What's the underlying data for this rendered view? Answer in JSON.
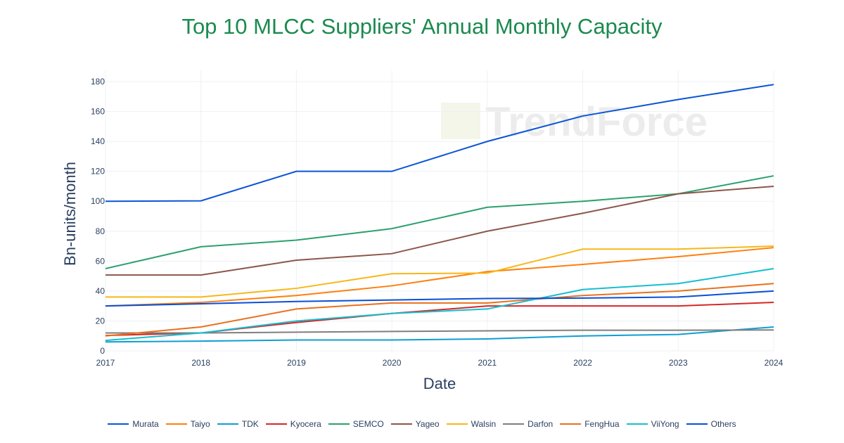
{
  "chart_data": {
    "type": "line",
    "title": "Top 10 MLCC Suppliers' Annual Monthly Capacity",
    "xlabel": "Date",
    "ylabel": "Bn-units/month",
    "x": [
      2017,
      2018,
      2019,
      2020,
      2021,
      2022,
      2023,
      2024
    ],
    "xlim": [
      2017,
      2024
    ],
    "ylim": [
      0,
      180
    ],
    "yticks": [
      0,
      20,
      40,
      60,
      80,
      100,
      120,
      140,
      160,
      180
    ],
    "grid": true,
    "legend_placement": "bottom",
    "watermark": "TrendForce",
    "series": [
      {
        "name": "Murata",
        "color": "#0b55d6",
        "values": [
          100,
          100.3,
          120,
          120,
          140,
          157,
          168,
          178
        ]
      },
      {
        "name": "Taiyo",
        "color": "#ff7f0e",
        "values": [
          30,
          32.4,
          37,
          43.5,
          53,
          57.8,
          63,
          69
        ]
      },
      {
        "name": "TDK",
        "color": "#0e9ed3",
        "values": [
          6,
          6.5,
          7.3,
          7.3,
          8,
          10,
          11,
          16
        ]
      },
      {
        "name": "Kyocera",
        "color": "#d62728",
        "values": [
          10.3,
          12,
          19,
          25,
          30,
          30,
          30,
          32.4
        ]
      },
      {
        "name": "SEMCO",
        "color": "#2ca06f",
        "values": [
          55,
          69.6,
          74,
          81.7,
          96,
          100,
          105,
          117
        ]
      },
      {
        "name": "Yageo",
        "color": "#8c564b",
        "values": [
          50.7,
          50.7,
          60.6,
          65,
          80,
          92,
          105,
          110
        ]
      },
      {
        "name": "Walsin",
        "color": "#f7b718",
        "values": [
          36,
          36,
          41.8,
          51.6,
          52,
          68,
          68,
          70
        ]
      },
      {
        "name": "Darfon",
        "color": "#7f7f7f",
        "values": [
          12,
          12,
          12.5,
          13,
          13.4,
          13.8,
          13.8,
          14
        ]
      },
      {
        "name": "FengHua",
        "color": "#e8711d",
        "values": [
          10,
          16,
          28,
          32,
          32,
          37,
          40,
          45
        ]
      },
      {
        "name": "ViiYong",
        "color": "#17becf",
        "values": [
          7,
          12,
          20,
          25,
          28,
          41,
          45,
          55
        ]
      },
      {
        "name": "Others",
        "color": "#0a4fd8",
        "values": [
          30,
          31.5,
          33,
          34,
          35,
          35.3,
          36,
          40
        ]
      }
    ]
  }
}
